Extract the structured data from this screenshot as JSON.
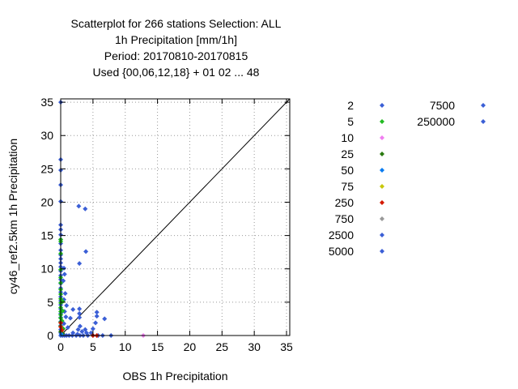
{
  "chart_data": {
    "type": "scatter",
    "title_lines": [
      "Scatterplot for  266 stations Selection: ALL",
      "1h Precipitation [mm/1h]",
      "Period: 20170810-20170815",
      "Used {00,06,12,18} + 01 02 ... 48"
    ],
    "xlabel": "OBS 1h Precipitation",
    "ylabel": "cy46_ref2.5km 1h Precipitation",
    "xlim": [
      0,
      35.5
    ],
    "ylim": [
      0,
      35.5
    ],
    "xticks": [
      0,
      5,
      10,
      15,
      20,
      25,
      30,
      35
    ],
    "yticks": [
      0,
      5,
      10,
      15,
      20,
      25,
      30,
      35
    ],
    "grid": true,
    "diagonal": true,
    "legend_placement": "right",
    "series": [
      {
        "name": "2",
        "color": "#3b5fd6",
        "points": [
          [
            0,
            35
          ],
          [
            0,
            26.4
          ],
          [
            0,
            24.8
          ],
          [
            0,
            22.6
          ],
          [
            0,
            20.1
          ],
          [
            0,
            16.6
          ],
          [
            0,
            15.9
          ],
          [
            0,
            15.1
          ],
          [
            0,
            14.4
          ],
          [
            0,
            13.8
          ],
          [
            0,
            12.8
          ],
          [
            0,
            12.1
          ],
          [
            0,
            11.5
          ],
          [
            0,
            10.9
          ],
          [
            0,
            10.3
          ],
          [
            0,
            9.7
          ],
          [
            0,
            9.0
          ],
          [
            0,
            8.4
          ],
          [
            0,
            7.8
          ],
          [
            0,
            7.1
          ],
          [
            0,
            6.5
          ],
          [
            0,
            5.8
          ],
          [
            0,
            5.2
          ],
          [
            0,
            4.6
          ],
          [
            0,
            4.0
          ],
          [
            0,
            3.3
          ],
          [
            0,
            2.7
          ],
          [
            0,
            2.1
          ],
          [
            0,
            1.5
          ],
          [
            0,
            0.9
          ],
          [
            0,
            0.4
          ],
          [
            0,
            0
          ],
          [
            0.3,
            0
          ],
          [
            0.6,
            0
          ],
          [
            0.9,
            0
          ],
          [
            1.3,
            0
          ],
          [
            1.8,
            0
          ],
          [
            2.4,
            0
          ],
          [
            3.0,
            0
          ],
          [
            3.5,
            0
          ],
          [
            4.2,
            0
          ],
          [
            5.0,
            0
          ],
          [
            5.8,
            0
          ],
          [
            6.5,
            0
          ],
          [
            7.8,
            0
          ],
          [
            0.5,
            10.1
          ],
          [
            0.6,
            9.2
          ],
          [
            0.4,
            8.2
          ],
          [
            0.7,
            6.3
          ],
          [
            0.5,
            5.4
          ],
          [
            0.9,
            4.5
          ],
          [
            0.6,
            3.6
          ],
          [
            0.8,
            2.8
          ],
          [
            0.5,
            1.8
          ],
          [
            1.1,
            1.2
          ],
          [
            2.8,
            19.4
          ],
          [
            3.8,
            19.0
          ],
          [
            3.9,
            12.6
          ],
          [
            2.9,
            10.8
          ],
          [
            1.9,
            3.9
          ],
          [
            2.9,
            4.0
          ],
          [
            1.5,
            2.6
          ],
          [
            2.9,
            2.7
          ],
          [
            2.9,
            3.3
          ],
          [
            3.0,
            1.4
          ],
          [
            3.8,
            0.9
          ],
          [
            5.6,
            3.5
          ],
          [
            5.6,
            2.9
          ],
          [
            6.8,
            2.5
          ],
          [
            5.4,
            1.9
          ],
          [
            4.7,
            0.4
          ],
          [
            1.9,
            0.4
          ],
          [
            2.6,
            0.2
          ],
          [
            4.0,
            0.4
          ],
          [
            2.7,
            0.9
          ],
          [
            3.3,
            0.6
          ],
          [
            5.0,
            1.0
          ]
        ]
      },
      {
        "name": "5",
        "color": "#22bb22",
        "points": [
          [
            0,
            14.4
          ],
          [
            0,
            14.1
          ],
          [
            0,
            12.3
          ],
          [
            0,
            9.9
          ],
          [
            0,
            8.7
          ],
          [
            0,
            7.9
          ],
          [
            0,
            6.9
          ],
          [
            0,
            6.2
          ],
          [
            0,
            5.5
          ],
          [
            0,
            4.9
          ],
          [
            0,
            4.2
          ],
          [
            0,
            3.6
          ],
          [
            0,
            3.1
          ],
          [
            0,
            2.6
          ],
          [
            0,
            2.0
          ],
          [
            0,
            1.4
          ],
          [
            0.3,
            5.1
          ],
          [
            0.3,
            3.7
          ],
          [
            0.2,
            2.2
          ],
          [
            0.4,
            1.0
          ]
        ]
      },
      {
        "name": "10",
        "color": "#f07ef0",
        "points": [
          [
            12.8,
            0
          ]
        ]
      },
      {
        "name": "25",
        "color": "#2a7a10",
        "points": [
          [
            0,
            0.6
          ],
          [
            0.3,
            0.3
          ]
        ]
      },
      {
        "name": "50",
        "color": "#0a7cf0",
        "points": [
          [
            0.1,
            0.2
          ]
        ]
      },
      {
        "name": "75",
        "color": "#c8c80a",
        "points": []
      },
      {
        "name": "250",
        "color": "#d41a00",
        "points": [
          [
            0,
            1.9
          ],
          [
            0,
            1.3
          ],
          [
            0.2,
            0.8
          ],
          [
            5.0,
            0
          ],
          [
            5.6,
            0
          ]
        ]
      },
      {
        "name": "750",
        "color": "#999999",
        "points": []
      },
      {
        "name": "2500",
        "color": "#3b5fd6",
        "points": []
      },
      {
        "name": "5000",
        "color": "#3b5fd6",
        "points": []
      },
      {
        "name": "7500",
        "color": "#3b5fd6",
        "points": []
      },
      {
        "name": "250000",
        "color": "#3b5fd6",
        "points": []
      }
    ]
  }
}
